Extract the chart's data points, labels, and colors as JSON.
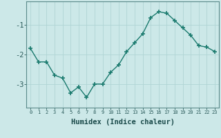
{
  "x": [
    0,
    1,
    2,
    3,
    4,
    5,
    6,
    7,
    8,
    9,
    10,
    11,
    12,
    13,
    14,
    15,
    16,
    17,
    18,
    19,
    20,
    21,
    22,
    23
  ],
  "y": [
    -1.8,
    -2.25,
    -2.25,
    -2.7,
    -2.8,
    -3.3,
    -3.1,
    -3.45,
    -3.0,
    -3.0,
    -2.6,
    -2.35,
    -1.9,
    -1.6,
    -1.3,
    -0.75,
    -0.55,
    -0.6,
    -0.85,
    -1.1,
    -1.35,
    -1.7,
    -1.75,
    -1.9
  ],
  "xlabel": "Humidex (Indice chaleur)",
  "yticks": [
    -1,
    -2,
    -3
  ],
  "ylim": [
    -3.8,
    -0.2
  ],
  "xlim": [
    -0.5,
    23.5
  ],
  "line_color": "#1a7a6e",
  "bg_color": "#cce8e8",
  "grid_color": "#b0d4d4",
  "axis_color": "#5a8a8a",
  "tick_color": "#2a5a5a",
  "label_color": "#1a4a4a",
  "font_family": "monospace",
  "xlabel_fontsize": 7.5,
  "xtick_fontsize": 5.0,
  "ytick_fontsize": 7.5
}
